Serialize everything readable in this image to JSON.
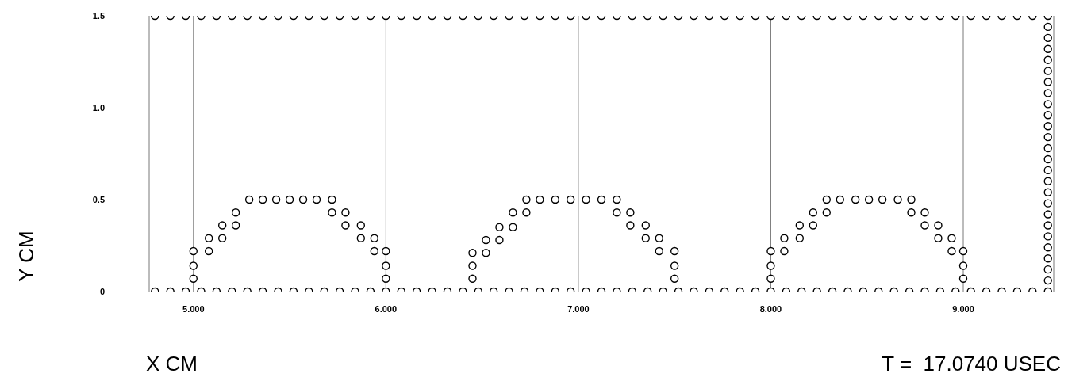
{
  "chart_data": {
    "type": "scatter",
    "xlabel": "X CM",
    "ylabel": "Y CM",
    "annotations": [
      "T =  17.0740 USEC"
    ],
    "xlim": [
      4.77,
      9.47
    ],
    "ylim": [
      0,
      1.5
    ],
    "xticks": [
      {
        "value": 5,
        "label": "5.000"
      },
      {
        "value": 6,
        "label": "6.000"
      },
      {
        "value": 7,
        "label": "7.000"
      },
      {
        "value": 8,
        "label": "8.000"
      },
      {
        "value": 9,
        "label": "9.000"
      }
    ],
    "yticks": [
      0,
      {
        "value": 0.5,
        "label": "0.5"
      },
      {
        "value": 1,
        "label": "1.0"
      },
      1.5
    ],
    "grid": "x",
    "marker": "circle",
    "series": [
      {
        "color": "#000000",
        "x": [
          4.8,
          4.88,
          4.96,
          5.04,
          5.12,
          5.2,
          5.28,
          5.36,
          5.44,
          5.52,
          5.6,
          5.68,
          5.76,
          5.84,
          5.92,
          6.0,
          6.08,
          6.16,
          6.24,
          6.32,
          6.4,
          6.48,
          6.56,
          6.64,
          6.72,
          6.8,
          6.88,
          6.96,
          7.04,
          7.12,
          7.2,
          7.28,
          7.36,
          7.44,
          7.52,
          7.6,
          7.68,
          7.76,
          7.84,
          7.92,
          8.0,
          8.08,
          8.16,
          8.24,
          8.32,
          8.4,
          8.48,
          8.56,
          8.64,
          8.72,
          8.8,
          8.88,
          8.96,
          9.04,
          9.12,
          9.2,
          9.28,
          9.36,
          9.44
        ],
        "values": [
          1.5,
          1.5,
          1.5,
          1.5,
          1.5,
          1.5,
          1.5,
          1.5,
          1.5,
          1.5,
          1.5,
          1.5,
          1.5,
          1.5,
          1.5,
          1.5,
          1.5,
          1.5,
          1.5,
          1.5,
          1.5,
          1.5,
          1.5,
          1.5,
          1.5,
          1.5,
          1.5,
          1.5,
          1.5,
          1.5,
          1.5,
          1.5,
          1.5,
          1.5,
          1.5,
          1.5,
          1.5,
          1.5,
          1.5,
          1.5,
          1.5,
          1.5,
          1.5,
          1.5,
          1.5,
          1.5,
          1.5,
          1.5,
          1.5,
          1.5,
          1.5,
          1.5,
          1.5,
          1.5,
          1.5,
          1.5,
          1.5,
          1.5,
          1.5
        ]
      },
      {
        "color": "#000000",
        "x": [
          4.8,
          4.88,
          4.96,
          5.04,
          5.12,
          5.2,
          5.28,
          5.36,
          5.44,
          5.52,
          5.6,
          5.68,
          5.76,
          5.84,
          5.92,
          6.0,
          6.08,
          6.16,
          6.24,
          6.32,
          6.4,
          6.48,
          6.56,
          6.64,
          6.72,
          6.8,
          6.88,
          6.96,
          7.04,
          7.12,
          7.2,
          7.28,
          7.36,
          7.44,
          7.52,
          7.6,
          7.68,
          7.76,
          7.84,
          7.92,
          8.0,
          8.08,
          8.16,
          8.24,
          8.32,
          8.4,
          8.48,
          8.56,
          8.64,
          8.72,
          8.8,
          8.88,
          8.96,
          9.04,
          9.12,
          9.2,
          9.28,
          9.36,
          9.44
        ],
        "values": [
          0,
          0,
          0,
          0,
          0,
          0,
          0,
          0,
          0,
          0,
          0,
          0,
          0,
          0,
          0,
          0,
          0,
          0,
          0,
          0,
          0,
          0,
          0,
          0,
          0,
          0,
          0,
          0,
          0,
          0,
          0,
          0,
          0,
          0,
          0,
          0,
          0,
          0,
          0,
          0,
          0,
          0,
          0,
          0,
          0,
          0,
          0,
          0,
          0,
          0,
          0,
          0,
          0,
          0,
          0,
          0,
          0,
          0,
          0
        ]
      },
      {
        "color": "#000000",
        "x": [
          9.44,
          9.44,
          9.44,
          9.44,
          9.44,
          9.44,
          9.44,
          9.44,
          9.44,
          9.44,
          9.44,
          9.44,
          9.44,
          9.44,
          9.44,
          9.44,
          9.44,
          9.44,
          9.44,
          9.44,
          9.44,
          9.44,
          9.44,
          9.44
        ],
        "values": [
          0.06,
          0.12,
          0.18,
          0.24,
          0.3,
          0.36,
          0.42,
          0.48,
          0.54,
          0.6,
          0.66,
          0.72,
          0.78,
          0.84,
          0.9,
          0.96,
          1.02,
          1.08,
          1.14,
          1.2,
          1.26,
          1.32,
          1.38,
          1.44
        ]
      },
      {
        "color": "#000000",
        "x": [
          5,
          5,
          5,
          5.08,
          5.08,
          5.15,
          5.15,
          5.22,
          5.22,
          5.29,
          5.36,
          5.43,
          5.5,
          5.57,
          5.64,
          5.72,
          5.72,
          5.79,
          5.79,
          5.87,
          5.87,
          5.94,
          5.94,
          6.0,
          6.0,
          6.0
        ],
        "values": [
          0.07,
          0.14,
          0.22,
          0.22,
          0.29,
          0.29,
          0.36,
          0.36,
          0.43,
          0.5,
          0.5,
          0.5,
          0.5,
          0.5,
          0.5,
          0.5,
          0.43,
          0.43,
          0.36,
          0.36,
          0.29,
          0.29,
          0.22,
          0.22,
          0.14,
          0.07
        ]
      },
      {
        "color": "#000000",
        "x": [
          6.45,
          6.45,
          6.45,
          6.52,
          6.52,
          6.59,
          6.59,
          6.66,
          6.66,
          6.73,
          6.73,
          6.8,
          6.88,
          6.96,
          7.04,
          7.12,
          7.2,
          7.2,
          7.27,
          7.27,
          7.35,
          7.35,
          7.42,
          7.42,
          7.5,
          7.5,
          7.5
        ],
        "values": [
          0.07,
          0.14,
          0.21,
          0.21,
          0.28,
          0.28,
          0.35,
          0.35,
          0.43,
          0.43,
          0.5,
          0.5,
          0.5,
          0.5,
          0.5,
          0.5,
          0.5,
          0.43,
          0.43,
          0.36,
          0.36,
          0.29,
          0.29,
          0.22,
          0.22,
          0.14,
          0.07
        ]
      },
      {
        "color": "#000000",
        "x": [
          8,
          8,
          8,
          8.07,
          8.07,
          8.15,
          8.15,
          8.22,
          8.22,
          8.29,
          8.29,
          8.36,
          8.44,
          8.51,
          8.58,
          8.66,
          8.73,
          8.73,
          8.8,
          8.8,
          8.87,
          8.87,
          8.94,
          8.94,
          9.0,
          9.0,
          9.0
        ],
        "values": [
          0.07,
          0.14,
          0.22,
          0.22,
          0.29,
          0.29,
          0.36,
          0.36,
          0.43,
          0.43,
          0.5,
          0.5,
          0.5,
          0.5,
          0.5,
          0.5,
          0.5,
          0.43,
          0.43,
          0.36,
          0.36,
          0.29,
          0.29,
          0.22,
          0.22,
          0.14,
          0.07
        ]
      }
    ]
  }
}
